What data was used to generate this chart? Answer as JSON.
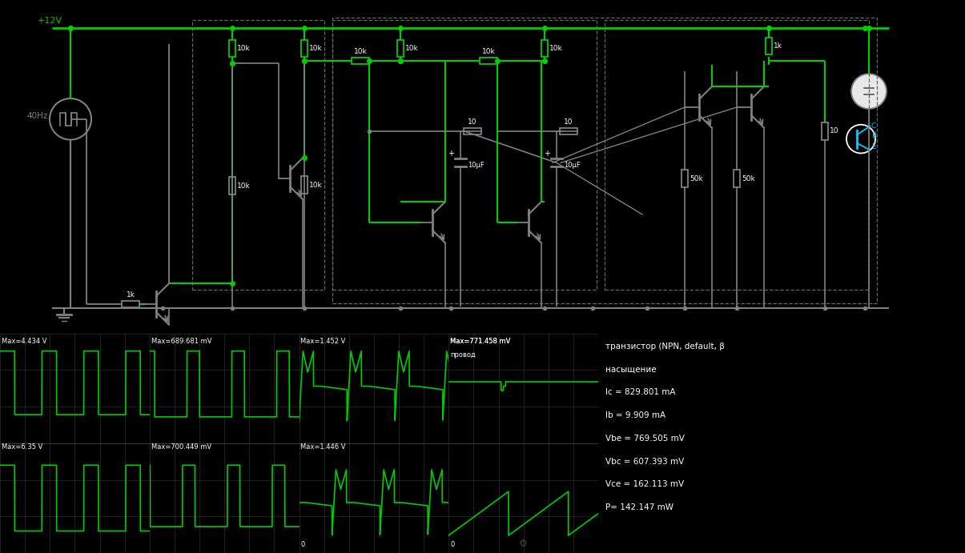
{
  "bg_color": "#000000",
  "green": "#00cc00",
  "gray": "#808080",
  "white": "#ffffff",
  "cyan": "#00ccff",
  "vcc_label": "+12V",
  "freq_label": "40Hz",
  "scope_labels_top": [
    "Max=4.434 V",
    "Max=689.681 mV",
    "Max=1.452 V",
    "Max=771.458 mV"
  ],
  "scope_labels_bot": [
    "Max=6.35 V",
    "Max=700.449 mV",
    "Max=1.446 V"
  ],
  "info_text": [
    "транзистор (NPN, default, β",
    "насыщение",
    "Ic = 829.801 mA",
    "Ib = 9.909 mA",
    "Vbe = 769.505 mV",
    "Vbc = 607.393 mV",
    "Vce = 162.113 mV",
    "P= 142.147 mW"
  ],
  "provod_label": "провод",
  "figsize": [
    12.05,
    6.91
  ],
  "dpi": 100
}
